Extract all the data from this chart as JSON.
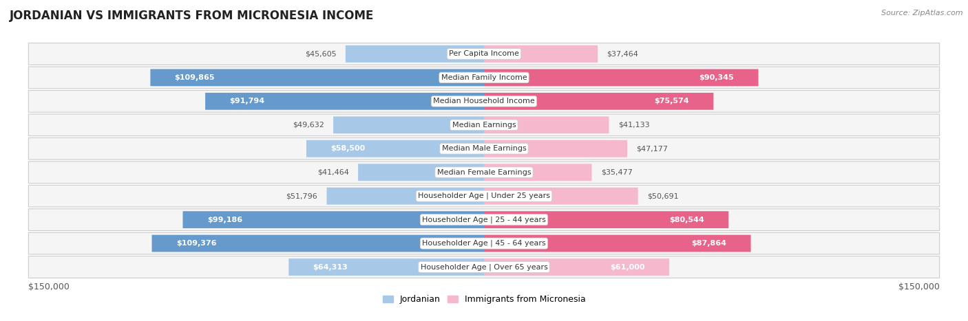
{
  "title": "JORDANIAN VS IMMIGRANTS FROM MICRONESIA INCOME",
  "source": "Source: ZipAtlas.com",
  "categories": [
    "Per Capita Income",
    "Median Family Income",
    "Median Household Income",
    "Median Earnings",
    "Median Male Earnings",
    "Median Female Earnings",
    "Householder Age | Under 25 years",
    "Householder Age | 25 - 44 years",
    "Householder Age | 45 - 64 years",
    "Householder Age | Over 65 years"
  ],
  "jordanian": [
    45605,
    109865,
    91794,
    49632,
    58500,
    41464,
    51796,
    99186,
    109376,
    64313
  ],
  "micronesia": [
    37464,
    90345,
    75574,
    41133,
    47177,
    35477,
    50691,
    80544,
    87864,
    61000
  ],
  "jordanian_color_light": "#a8c8e8",
  "jordanian_color_dark": "#6699cc",
  "micronesia_color_light": "#f5b8cc",
  "micronesia_color_dark": "#e8638a",
  "label_inside_color": "#ffffff",
  "label_outside_color": "#555555",
  "background_color": "#ffffff",
  "row_fill_color": "#f5f5f5",
  "row_border_color": "#cccccc",
  "max_value": 150000,
  "inside_threshold": 70000,
  "legend_jordanian": "Jordanian",
  "legend_micronesia": "Immigrants from Micronesia",
  "xlabel_left": "$150,000",
  "xlabel_right": "$150,000"
}
